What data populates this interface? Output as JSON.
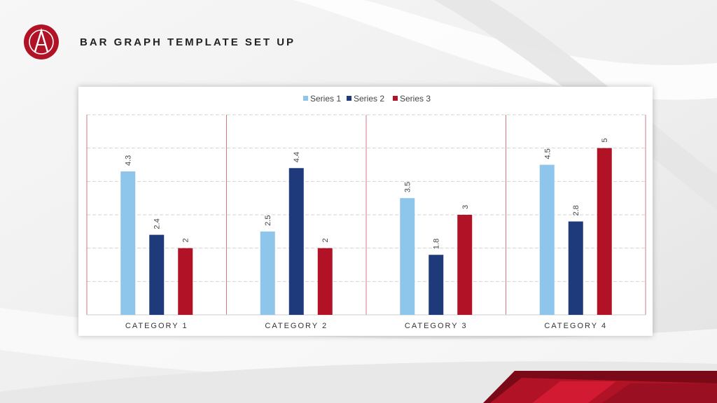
{
  "slide": {
    "title": "BAR GRAPH TEMPLATE SET UP"
  },
  "theme": {
    "accent_red": "#b11226",
    "series_colors": [
      "#8ec5ea",
      "#1f3a7a",
      "#b11226"
    ]
  },
  "chart_data": {
    "type": "bar",
    "categories": [
      "CATEGORY 1",
      "CATEGORY 2",
      "CATEGORY 3",
      "CATEGORY 4"
    ],
    "series": [
      {
        "name": "Series 1",
        "values": [
          4.3,
          2.5,
          3.5,
          4.5
        ]
      },
      {
        "name": "Series 2",
        "values": [
          2.4,
          4.4,
          1.8,
          2.8
        ]
      },
      {
        "name": "Series 3",
        "values": [
          2,
          2,
          3,
          5
        ]
      }
    ],
    "ylim": [
      0,
      6
    ],
    "grid": true,
    "legend": "top-center",
    "data_labels": true,
    "data_label_rotation": "vertical"
  }
}
